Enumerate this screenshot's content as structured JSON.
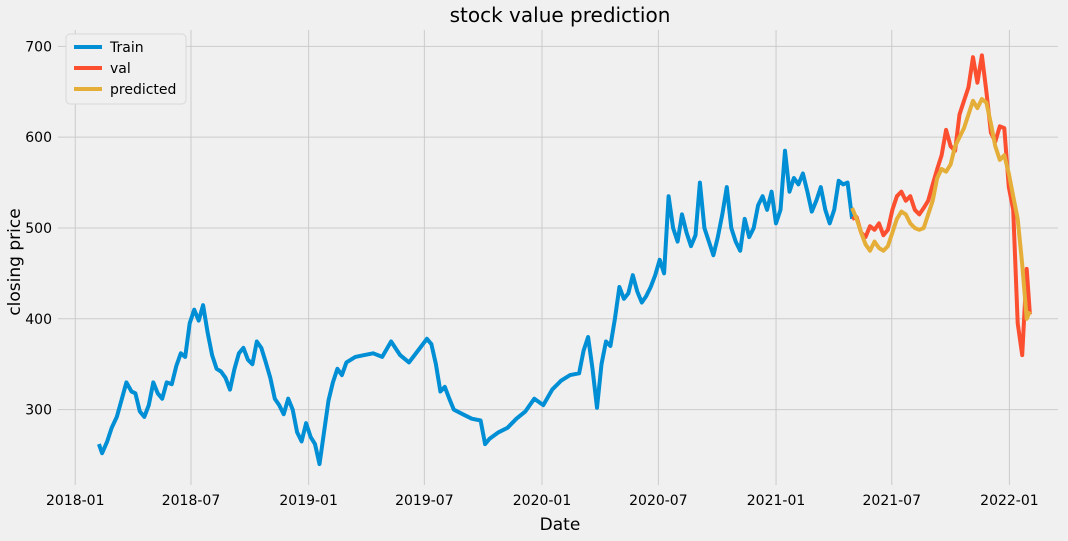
{
  "chart_data": {
    "type": "line",
    "title": "stock value prediction",
    "xlabel": "Date",
    "ylabel": "closing price",
    "grid": true,
    "legend_position": "top-left",
    "xlim": [
      "2017-12-05",
      "2022-03-18"
    ],
    "ylim": [
      217,
      718
    ],
    "x_ticks": [
      "2018-01",
      "2018-07",
      "2019-01",
      "2019-07",
      "2020-01",
      "2020-07",
      "2021-01",
      "2021-07",
      "2022-01"
    ],
    "y_ticks": [
      300,
      400,
      500,
      600,
      700
    ],
    "colors": {
      "background": "#f0f0f0",
      "grid": "#cbcbcb"
    },
    "series": [
      {
        "name": "Train",
        "color": "#008fd5",
        "points": [
          [
            "2018-02-07",
            262
          ],
          [
            "2018-02-12",
            252
          ],
          [
            "2018-02-20",
            265
          ],
          [
            "2018-02-27",
            280
          ],
          [
            "2018-03-07",
            292
          ],
          [
            "2018-03-15",
            312
          ],
          [
            "2018-03-22",
            330
          ],
          [
            "2018-03-30",
            320
          ],
          [
            "2018-04-05",
            318
          ],
          [
            "2018-04-12",
            298
          ],
          [
            "2018-04-19",
            292
          ],
          [
            "2018-04-26",
            305
          ],
          [
            "2018-05-03",
            330
          ],
          [
            "2018-05-10",
            318
          ],
          [
            "2018-05-17",
            312
          ],
          [
            "2018-05-24",
            330
          ],
          [
            "2018-06-01",
            328
          ],
          [
            "2018-06-08",
            348
          ],
          [
            "2018-06-15",
            362
          ],
          [
            "2018-06-22",
            358
          ],
          [
            "2018-06-29",
            395
          ],
          [
            "2018-07-06",
            410
          ],
          [
            "2018-07-13",
            398
          ],
          [
            "2018-07-20",
            415
          ],
          [
            "2018-07-27",
            385
          ],
          [
            "2018-08-03",
            360
          ],
          [
            "2018-08-10",
            345
          ],
          [
            "2018-08-17",
            342
          ],
          [
            "2018-08-24",
            335
          ],
          [
            "2018-08-31",
            322
          ],
          [
            "2018-09-07",
            345
          ],
          [
            "2018-09-14",
            362
          ],
          [
            "2018-09-21",
            368
          ],
          [
            "2018-09-28",
            355
          ],
          [
            "2018-10-05",
            350
          ],
          [
            "2018-10-12",
            375
          ],
          [
            "2018-10-19",
            368
          ],
          [
            "2018-10-26",
            352
          ],
          [
            "2018-11-02",
            335
          ],
          [
            "2018-11-09",
            312
          ],
          [
            "2018-11-16",
            305
          ],
          [
            "2018-11-23",
            295
          ],
          [
            "2018-11-30",
            312
          ],
          [
            "2018-12-07",
            300
          ],
          [
            "2018-12-14",
            275
          ],
          [
            "2018-12-21",
            265
          ],
          [
            "2018-12-28",
            285
          ],
          [
            "2019-01-04",
            270
          ],
          [
            "2019-01-11",
            262
          ],
          [
            "2019-01-18",
            240
          ],
          [
            "2019-01-25",
            275
          ],
          [
            "2019-02-01",
            310
          ],
          [
            "2019-02-08",
            330
          ],
          [
            "2019-02-15",
            345
          ],
          [
            "2019-02-22",
            338
          ],
          [
            "2019-03-01",
            352
          ],
          [
            "2019-03-15",
            358
          ],
          [
            "2019-03-29",
            360
          ],
          [
            "2019-04-12",
            362
          ],
          [
            "2019-04-26",
            358
          ],
          [
            "2019-05-10",
            375
          ],
          [
            "2019-05-24",
            360
          ],
          [
            "2019-06-07",
            352
          ],
          [
            "2019-06-21",
            365
          ],
          [
            "2019-07-05",
            378
          ],
          [
            "2019-07-12",
            372
          ],
          [
            "2019-07-19",
            350
          ],
          [
            "2019-07-26",
            320
          ],
          [
            "2019-08-02",
            325
          ],
          [
            "2019-08-09",
            312
          ],
          [
            "2019-08-16",
            300
          ],
          [
            "2019-08-30",
            295
          ],
          [
            "2019-09-13",
            290
          ],
          [
            "2019-09-27",
            288
          ],
          [
            "2019-10-04",
            262
          ],
          [
            "2019-10-11",
            268
          ],
          [
            "2019-10-25",
            275
          ],
          [
            "2019-11-08",
            280
          ],
          [
            "2019-11-22",
            290
          ],
          [
            "2019-12-06",
            298
          ],
          [
            "2019-12-20",
            312
          ],
          [
            "2020-01-03",
            305
          ],
          [
            "2020-01-17",
            322
          ],
          [
            "2020-01-31",
            332
          ],
          [
            "2020-02-14",
            338
          ],
          [
            "2020-02-28",
            340
          ],
          [
            "2020-03-06",
            365
          ],
          [
            "2020-03-13",
            380
          ],
          [
            "2020-03-20",
            345
          ],
          [
            "2020-03-27",
            302
          ],
          [
            "2020-04-03",
            350
          ],
          [
            "2020-04-10",
            375
          ],
          [
            "2020-04-17",
            370
          ],
          [
            "2020-04-24",
            400
          ],
          [
            "2020-05-01",
            435
          ],
          [
            "2020-05-08",
            422
          ],
          [
            "2020-05-15",
            428
          ],
          [
            "2020-05-22",
            448
          ],
          [
            "2020-05-29",
            430
          ],
          [
            "2020-06-05",
            418
          ],
          [
            "2020-06-12",
            425
          ],
          [
            "2020-06-19",
            435
          ],
          [
            "2020-06-26",
            448
          ],
          [
            "2020-07-03",
            465
          ],
          [
            "2020-07-10",
            450
          ],
          [
            "2020-07-17",
            535
          ],
          [
            "2020-07-24",
            500
          ],
          [
            "2020-07-31",
            485
          ],
          [
            "2020-08-07",
            515
          ],
          [
            "2020-08-14",
            495
          ],
          [
            "2020-08-21",
            480
          ],
          [
            "2020-08-28",
            492
          ],
          [
            "2020-09-04",
            550
          ],
          [
            "2020-09-11",
            500
          ],
          [
            "2020-09-18",
            485
          ],
          [
            "2020-09-25",
            470
          ],
          [
            "2020-10-02",
            490
          ],
          [
            "2020-10-09",
            515
          ],
          [
            "2020-10-16",
            545
          ],
          [
            "2020-10-23",
            500
          ],
          [
            "2020-10-30",
            485
          ],
          [
            "2020-11-06",
            475
          ],
          [
            "2020-11-13",
            510
          ],
          [
            "2020-11-20",
            490
          ],
          [
            "2020-11-27",
            500
          ],
          [
            "2020-12-04",
            525
          ],
          [
            "2020-12-11",
            535
          ],
          [
            "2020-12-18",
            520
          ],
          [
            "2020-12-25",
            540
          ],
          [
            "2021-01-01",
            505
          ],
          [
            "2021-01-08",
            520
          ],
          [
            "2021-01-15",
            585
          ],
          [
            "2021-01-22",
            540
          ],
          [
            "2021-01-29",
            555
          ],
          [
            "2021-02-05",
            548
          ],
          [
            "2021-02-12",
            560
          ],
          [
            "2021-02-19",
            540
          ],
          [
            "2021-02-26",
            518
          ],
          [
            "2021-03-05",
            530
          ],
          [
            "2021-03-12",
            545
          ],
          [
            "2021-03-19",
            520
          ],
          [
            "2021-03-26",
            505
          ],
          [
            "2021-04-02",
            520
          ],
          [
            "2021-04-09",
            552
          ],
          [
            "2021-04-16",
            548
          ],
          [
            "2021-04-23",
            550
          ],
          [
            "2021-04-30",
            510
          ]
        ]
      },
      {
        "name": "val",
        "color": "#fc4f30",
        "points": [
          [
            "2021-04-30",
            510
          ],
          [
            "2021-05-07",
            512
          ],
          [
            "2021-05-14",
            495
          ],
          [
            "2021-05-21",
            490
          ],
          [
            "2021-05-28",
            502
          ],
          [
            "2021-06-04",
            498
          ],
          [
            "2021-06-11",
            505
          ],
          [
            "2021-06-18",
            492
          ],
          [
            "2021-06-25",
            498
          ],
          [
            "2021-07-02",
            520
          ],
          [
            "2021-07-09",
            535
          ],
          [
            "2021-07-16",
            540
          ],
          [
            "2021-07-23",
            530
          ],
          [
            "2021-07-30",
            535
          ],
          [
            "2021-08-06",
            520
          ],
          [
            "2021-08-13",
            515
          ],
          [
            "2021-08-20",
            522
          ],
          [
            "2021-08-27",
            530
          ],
          [
            "2021-09-03",
            548
          ],
          [
            "2021-09-10",
            565
          ],
          [
            "2021-09-17",
            580
          ],
          [
            "2021-09-24",
            608
          ],
          [
            "2021-10-01",
            590
          ],
          [
            "2021-10-08",
            585
          ],
          [
            "2021-10-15",
            625
          ],
          [
            "2021-10-22",
            640
          ],
          [
            "2021-10-29",
            655
          ],
          [
            "2021-11-05",
            688
          ],
          [
            "2021-11-12",
            660
          ],
          [
            "2021-11-19",
            690
          ],
          [
            "2021-11-26",
            650
          ],
          [
            "2021-12-03",
            605
          ],
          [
            "2021-12-10",
            595
          ],
          [
            "2021-12-17",
            612
          ],
          [
            "2021-12-24",
            610
          ],
          [
            "2021-12-31",
            545
          ],
          [
            "2022-01-07",
            520
          ],
          [
            "2022-01-14",
            395
          ],
          [
            "2022-01-21",
            360
          ],
          [
            "2022-01-28",
            455
          ],
          [
            "2022-02-02",
            405
          ]
        ]
      },
      {
        "name": "predicted",
        "color": "#e5ae38",
        "points": [
          [
            "2021-04-30",
            522
          ],
          [
            "2021-05-07",
            510
          ],
          [
            "2021-05-14",
            495
          ],
          [
            "2021-05-21",
            482
          ],
          [
            "2021-05-28",
            475
          ],
          [
            "2021-06-04",
            485
          ],
          [
            "2021-06-11",
            478
          ],
          [
            "2021-06-18",
            475
          ],
          [
            "2021-06-25",
            480
          ],
          [
            "2021-07-02",
            495
          ],
          [
            "2021-07-09",
            510
          ],
          [
            "2021-07-16",
            518
          ],
          [
            "2021-07-23",
            515
          ],
          [
            "2021-07-30",
            505
          ],
          [
            "2021-08-06",
            500
          ],
          [
            "2021-08-13",
            498
          ],
          [
            "2021-08-20",
            500
          ],
          [
            "2021-08-27",
            515
          ],
          [
            "2021-09-03",
            530
          ],
          [
            "2021-09-10",
            555
          ],
          [
            "2021-09-17",
            565
          ],
          [
            "2021-09-24",
            562
          ],
          [
            "2021-10-01",
            570
          ],
          [
            "2021-10-08",
            590
          ],
          [
            "2021-10-15",
            600
          ],
          [
            "2021-10-22",
            610
          ],
          [
            "2021-10-29",
            625
          ],
          [
            "2021-11-05",
            640
          ],
          [
            "2021-11-12",
            632
          ],
          [
            "2021-11-19",
            642
          ],
          [
            "2021-11-26",
            638
          ],
          [
            "2021-12-03",
            615
          ],
          [
            "2021-12-10",
            590
          ],
          [
            "2021-12-17",
            575
          ],
          [
            "2021-12-24",
            580
          ],
          [
            "2021-12-31",
            560
          ],
          [
            "2022-01-07",
            535
          ],
          [
            "2022-01-14",
            510
          ],
          [
            "2022-01-21",
            460
          ],
          [
            "2022-01-28",
            400
          ],
          [
            "2022-02-02",
            408
          ]
        ]
      }
    ]
  }
}
